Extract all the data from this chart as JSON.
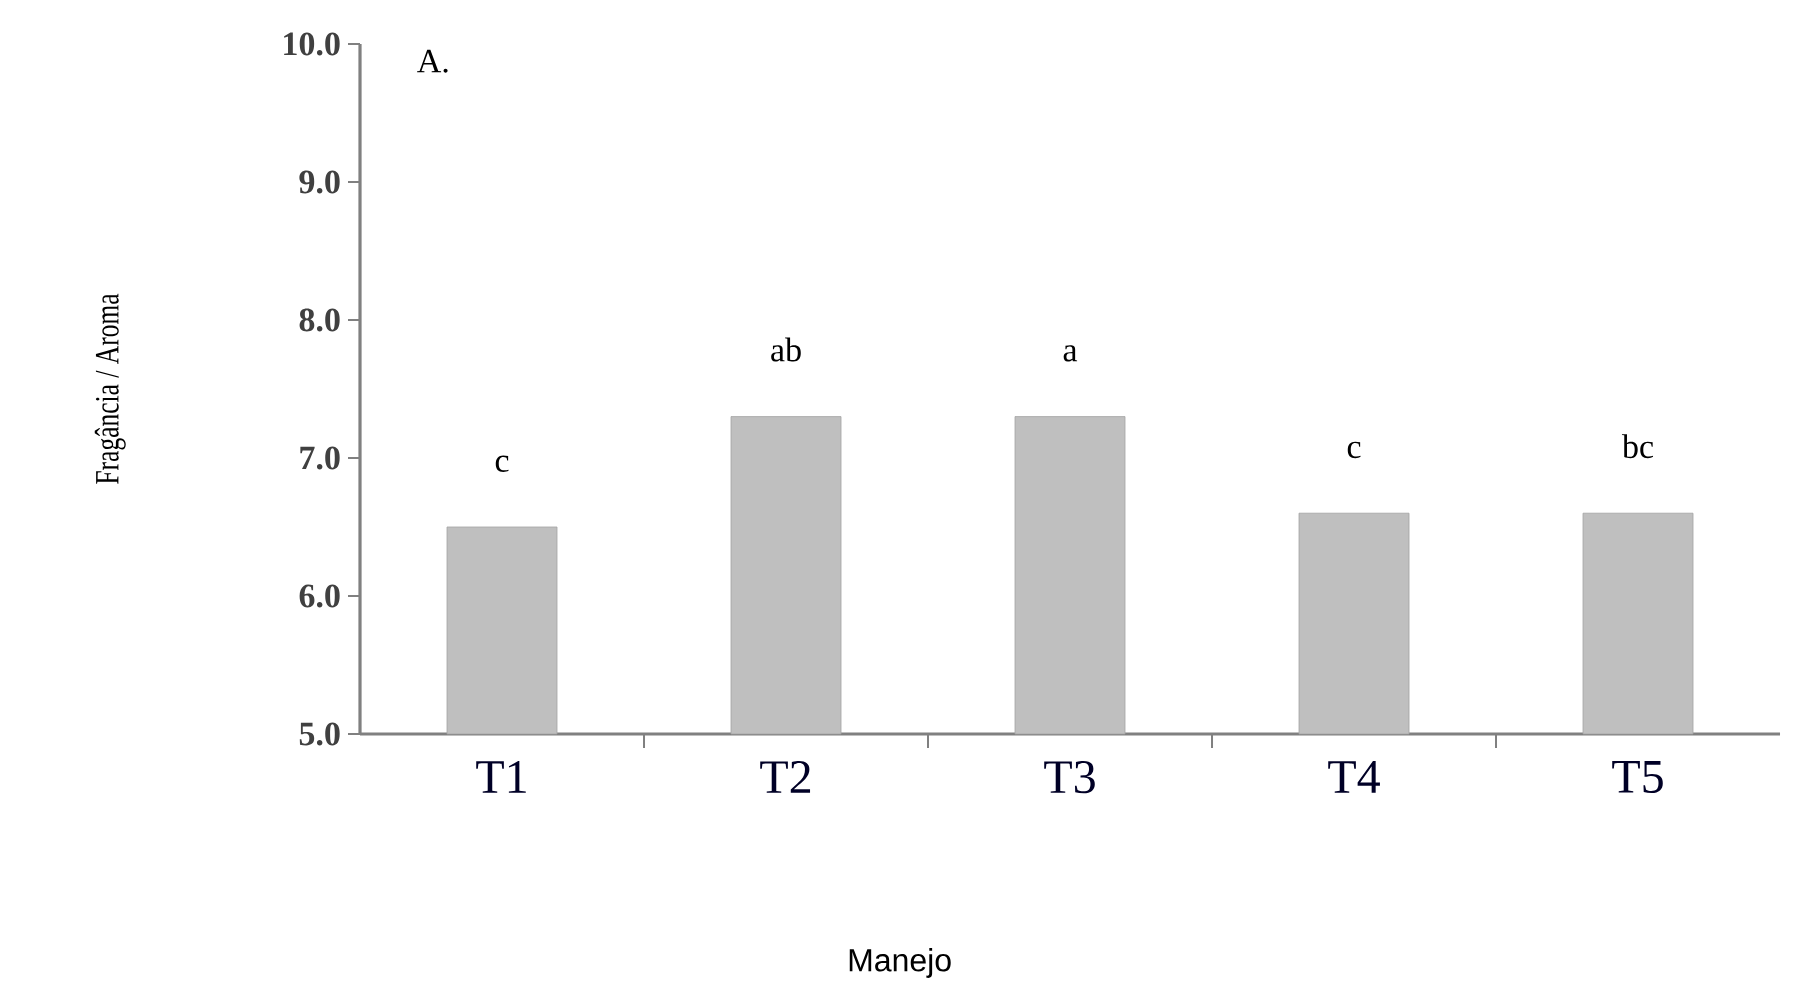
{
  "chart_data": {
    "type": "bar",
    "xlabel": "Manejo",
    "ylabel": "Fragância / Aroma",
    "categories": [
      "T1",
      "T2",
      "T3",
      "T4",
      "T5"
    ],
    "values": [
      6.5,
      7.3,
      7.3,
      6.6,
      6.6
    ],
    "color": "#bfbfbf",
    "ylim": [
      5.0,
      10.0
    ],
    "yticks": [
      {
        "value": 5,
        "label": "5.0"
      },
      {
        "value": 6,
        "label": "6.0"
      },
      {
        "value": 7,
        "label": "7.0"
      },
      {
        "value": 8,
        "label": "8.0"
      },
      {
        "value": 9,
        "label": "9.0"
      },
      {
        "value": 10,
        "label": "10.0"
      }
    ],
    "grid": false,
    "annotations": [
      "A.",
      {
        "text": "c",
        "x": "T1",
        "y": 6.5
      },
      {
        "text": "ab",
        "x": "T2",
        "y": 7.3
      },
      {
        "text": "a",
        "x": "T3",
        "y": 7.3
      },
      {
        "text": "c",
        "x": "T4",
        "y": 6.6
      },
      {
        "text": "bc",
        "x": "T5",
        "y": 6.6
      }
    ]
  }
}
